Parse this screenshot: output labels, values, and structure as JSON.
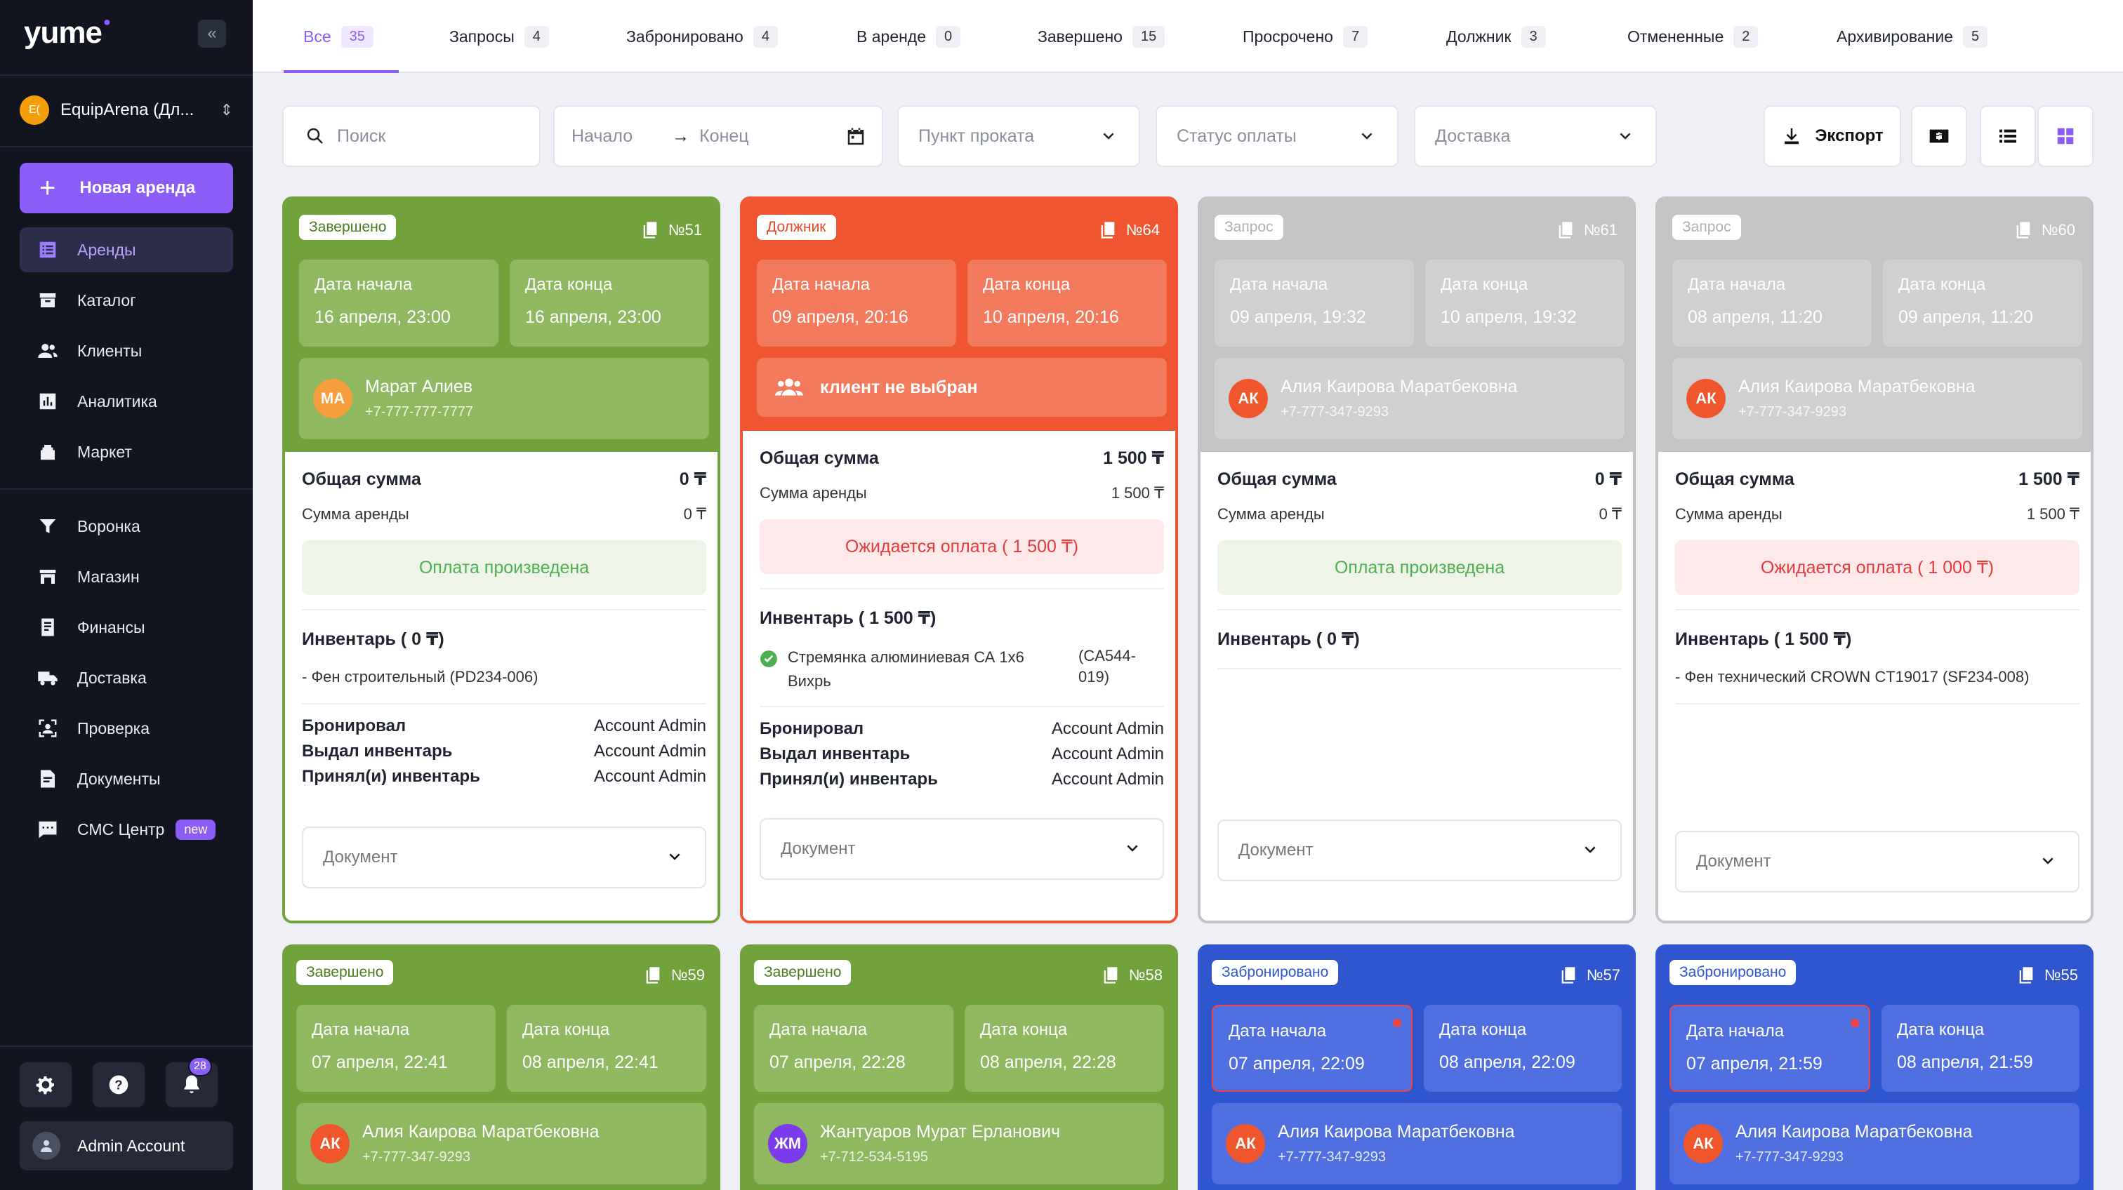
{
  "app": {
    "logo": "yume"
  },
  "sidebar": {
    "workspace_initials": "E(",
    "workspace_name": "EquipArena (Дл...",
    "new_rent_label": "Новая аренда",
    "nav_main": [
      {
        "label": "Аренды",
        "icon": "rentals-icon"
      },
      {
        "label": "Каталог",
        "icon": "catalog-icon"
      },
      {
        "label": "Клиенты",
        "icon": "clients-icon"
      },
      {
        "label": "Аналитика",
        "icon": "analytics-icon"
      },
      {
        "label": "Маркет",
        "icon": "market-icon"
      }
    ],
    "nav_secondary": [
      {
        "label": "Воронка",
        "icon": "funnel-icon"
      },
      {
        "label": "Магазин",
        "icon": "store-icon"
      },
      {
        "label": "Финансы",
        "icon": "finance-icon"
      },
      {
        "label": "Доставка",
        "icon": "delivery-icon"
      },
      {
        "label": "Проверка",
        "icon": "inspection-icon"
      },
      {
        "label": "Документы",
        "icon": "documents-icon"
      },
      {
        "label": "СМС Центр",
        "icon": "sms-icon",
        "badge": "new"
      }
    ],
    "notifications_count": "28",
    "user_name": "Admin Account"
  },
  "tabs": [
    {
      "label": "Все",
      "count": "35"
    },
    {
      "label": "Запросы",
      "count": "4"
    },
    {
      "label": "Забронировано",
      "count": "4"
    },
    {
      "label": "В аренде",
      "count": "0"
    },
    {
      "label": "Завершено",
      "count": "15"
    },
    {
      "label": "Просрочено",
      "count": "7"
    },
    {
      "label": "Должник",
      "count": "3"
    },
    {
      "label": "Отмененные",
      "count": "2"
    },
    {
      "label": "Архивирование",
      "count": "5"
    }
  ],
  "filters": {
    "search_placeholder": "Поиск",
    "date_start": "Начало",
    "date_end": "Конец",
    "pickup_point": "Пункт проката",
    "payment_status": "Статус оплаты",
    "delivery": "Доставка",
    "export_label": "Экспорт"
  },
  "colors": {
    "accent": "#8b5cf6",
    "completed": "#72a23c",
    "debtor": "#ef5530",
    "request": "#c4c4c4",
    "booked": "#2f55cf"
  },
  "cards": [
    {
      "status": "Завершено",
      "number": "№51",
      "start_label": "Дата начала",
      "start": "16 апреля, 23:00",
      "end_label": "Дата конца",
      "end": "16 апреля, 23:00",
      "client_initials": "МА",
      "client_name": "Марат Алиев",
      "client_phone": "+7-777-777-7777",
      "total_label": "Общая сумма",
      "total": "0 ₸",
      "rent_label": "Сумма аренды",
      "rent": "0 ₸",
      "payment": "Оплата произведена",
      "inventory_title": "Инвентарь ( 0 ₸)",
      "inventory_item": "- Фен строительный (PD234-006)",
      "booked_label": "Бронировал",
      "booked_by": "Account Admin",
      "issued_label": "Выдал инвентарь",
      "issued_by": "Account Admin",
      "received_label": "Принял(и) инвентарь",
      "received_by": "Account Admin",
      "document": "Документ"
    },
    {
      "status": "Должник",
      "number": "№64",
      "start_label": "Дата начала",
      "start": "09 апреля, 20:16",
      "end_label": "Дата конца",
      "end": "10 апреля, 20:16",
      "client_none": "клиент не выбран",
      "total_label": "Общая сумма",
      "total": "1 500 ₸",
      "rent_label": "Сумма аренды",
      "rent": "1 500 ₸",
      "payment": "Ожидается оплата ( 1 500 ₸)",
      "inventory_title": "Инвентарь ( 1 500 ₸)",
      "inventory_item": "Стремянка алюминиевая СА 1х6 Вихрь",
      "inventory_code": "(CA544-019)",
      "booked_label": "Бронировал",
      "booked_by": "Account Admin",
      "issued_label": "Выдал инвентарь",
      "issued_by": "Account Admin",
      "received_label": "Принял(и) инвентарь",
      "received_by": "Account Admin",
      "document": "Документ"
    },
    {
      "status": "Запрос",
      "number": "№61",
      "start_label": "Дата начала",
      "start": "09 апреля, 19:32",
      "end_label": "Дата конца",
      "end": "10 апреля, 19:32",
      "client_initials": "АК",
      "client_name": "Алия Каирова Маратбековна",
      "client_phone": "+7-777-347-9293",
      "total_label": "Общая сумма",
      "total": "0 ₸",
      "rent_label": "Сумма аренды",
      "rent": "0 ₸",
      "payment": "Оплата произведена",
      "inventory_title": "Инвентарь ( 0 ₸)",
      "document": "Документ"
    },
    {
      "status": "Запрос",
      "number": "№60",
      "start_label": "Дата начала",
      "start": "08 апреля, 11:20",
      "end_label": "Дата конца",
      "end": "09 апреля, 11:20",
      "client_initials": "АК",
      "client_name": "Алия Каирова Маратбековна",
      "client_phone": "+7-777-347-9293",
      "total_label": "Общая сумма",
      "total": "1 500 ₸",
      "rent_label": "Сумма аренды",
      "rent": "1 500 ₸",
      "payment": "Ожидается оплата ( 1 000 ₸)",
      "inventory_title": "Инвентарь ( 1 500 ₸)",
      "inventory_item": "- Фен технический CROWN CT19017 (SF234-008)",
      "document": "Документ"
    },
    {
      "status": "Завершено",
      "number": "№59",
      "start_label": "Дата начала",
      "start": "07 апреля, 22:41",
      "end_label": "Дата конца",
      "end": "08 апреля, 22:41",
      "client_initials": "АК",
      "client_name": "Алия Каирова Маратбековна",
      "client_phone": "+7-777-347-9293"
    },
    {
      "status": "Завершено",
      "number": "№58",
      "start_label": "Дата начала",
      "start": "07 апреля, 22:28",
      "end_label": "Дата конца",
      "end": "08 апреля, 22:28",
      "client_initials": "ЖМ",
      "client_name": "Жантуаров Мурат Ерланович",
      "client_phone": "+7-712-534-5195"
    },
    {
      "status": "Забронировано",
      "number": "№57",
      "start_label": "Дата начала",
      "start": "07 апреля, 22:09",
      "end_label": "Дата конца",
      "end": "08 апреля, 22:09",
      "client_initials": "АК",
      "client_name": "Алия Каирова Маратбековна",
      "client_phone": "+7-777-347-9293"
    },
    {
      "status": "Забронировано",
      "number": "№55",
      "start_label": "Дата начала",
      "start": "07 апреля, 21:59",
      "end_label": "Дата конца",
      "end": "08 апреля, 21:59",
      "client_initials": "АК",
      "client_name": "Алия Каирова Маратбековна",
      "client_phone": "+7-777-347-9293"
    }
  ]
}
